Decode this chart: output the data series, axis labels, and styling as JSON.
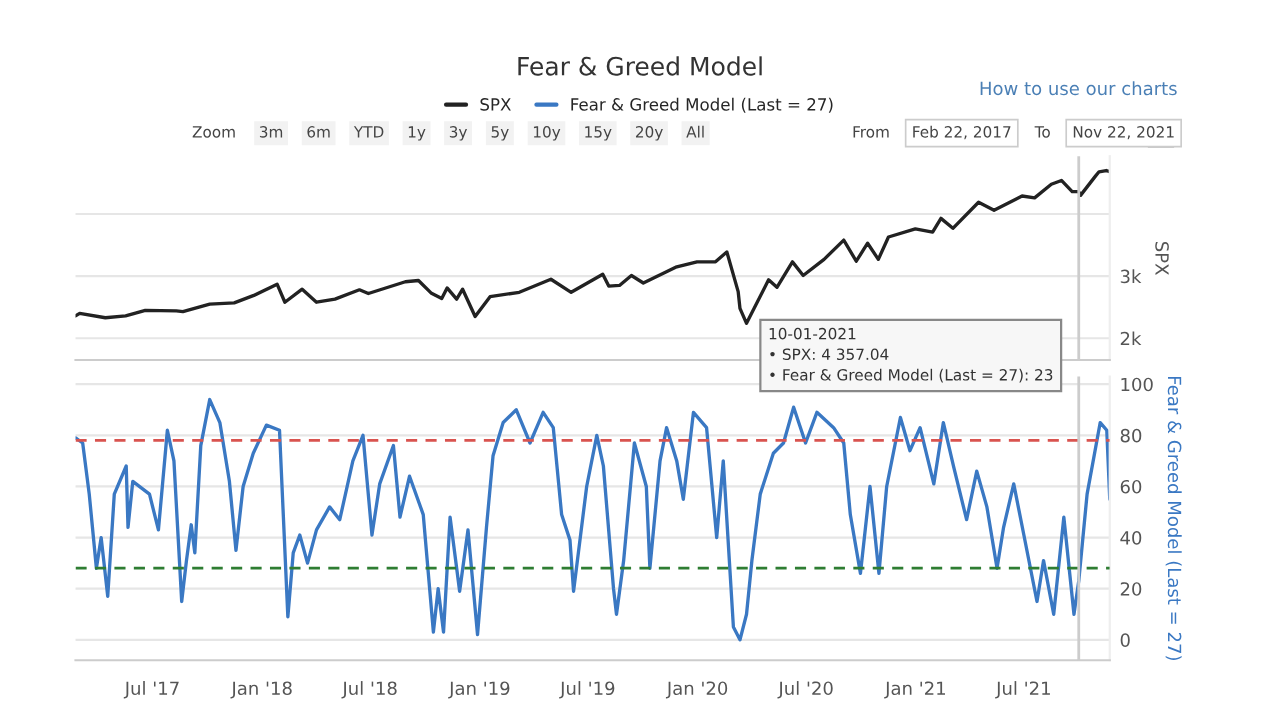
{
  "chart_data": [
    {
      "type": "line",
      "title": "Fear & Greed Model",
      "ylabel": "SPX",
      "legend": "top",
      "grid": "y",
      "tick_labels": "y",
      "xlim": [
        "2017-02-22",
        "2021-11-22"
      ],
      "ylim": [
        1650,
        4930
      ],
      "yticks": [
        {
          "value": 2000,
          "label": "2k"
        },
        {
          "value": 3000,
          "label": "3k"
        },
        {
          "value": 4000,
          "label": null
        }
      ],
      "ref_lines": [
        {
          "axis": "x",
          "value": "2021-10-01",
          "label": null,
          "color": "#cccccc"
        }
      ],
      "annotations": [
        "How to use our charts",
        "Zoom",
        "3m",
        "6m",
        "YTD",
        "1y",
        "3y",
        "5y",
        "10y",
        "15y",
        "20y",
        "All",
        "From",
        "Feb 22, 2017",
        "To",
        "Nov 22, 2021",
        "10-01-2021\n• SPX: 4 357.04\n• Fear & Greed Model (Last = 27): 23"
      ],
      "series": [
        {
          "name": "SPX",
          "color": "#222222",
          "x": [
            "2017-02-22",
            "2017-03-01",
            "2017-04-13",
            "2017-05-17",
            "2017-06-19",
            "2017-08-10",
            "2017-08-21",
            "2017-10-05",
            "2017-11-15",
            "2017-12-18",
            "2018-01-26",
            "2018-02-08",
            "2018-03-09",
            "2018-04-02",
            "2018-05-03",
            "2018-06-13",
            "2018-06-28",
            "2018-08-29",
            "2018-09-20",
            "2018-10-11",
            "2018-10-29",
            "2018-11-07",
            "2018-11-23",
            "2018-12-03",
            "2018-12-24",
            "2019-01-18",
            "2019-03-08",
            "2019-04-30",
            "2019-06-03",
            "2019-07-26",
            "2019-08-05",
            "2019-08-23",
            "2019-09-12",
            "2019-10-02",
            "2019-11-27",
            "2019-12-31",
            "2020-01-31",
            "2020-02-19",
            "2020-03-09",
            "2020-03-12",
            "2020-03-23",
            "2020-04-29",
            "2020-05-13",
            "2020-06-08",
            "2020-06-26",
            "2020-07-31",
            "2020-09-02",
            "2020-09-23",
            "2020-10-12",
            "2020-10-30",
            "2020-11-16",
            "2020-12-31",
            "2021-01-29",
            "2021-02-12",
            "2021-03-04",
            "2021-04-16",
            "2021-05-12",
            "2021-06-28",
            "2021-07-19",
            "2021-08-16",
            "2021-09-02",
            "2021-09-20",
            "2021-10-01",
            "2021-10-04",
            "2021-10-29",
            "2021-11-04",
            "2021-11-16",
            "2021-11-22"
          ],
          "values": [
            2360,
            2400,
            2330,
            2360,
            2450,
            2440,
            2430,
            2550,
            2570,
            2690,
            2870,
            2580,
            2790,
            2580,
            2630,
            2780,
            2720,
            2910,
            2930,
            2730,
            2640,
            2810,
            2630,
            2790,
            2350,
            2670,
            2740,
            2950,
            2740,
            3030,
            2840,
            2850,
            3010,
            2890,
            3150,
            3230,
            3230,
            3390,
            2750,
            2480,
            2240,
            2940,
            2820,
            3230,
            3010,
            3270,
            3580,
            3240,
            3530,
            3270,
            3630,
            3760,
            3710,
            3930,
            3770,
            4190,
            4060,
            4290,
            4260,
            4480,
            4540,
            4360,
            4360,
            4300,
            4610,
            4680,
            4700,
            4680
          ]
        }
      ]
    },
    {
      "type": "line",
      "ylabel": "Fear & Greed Model (Last = 27)",
      "legend": "top",
      "grid": "y",
      "xlim": [
        "2017-02-22",
        "2021-11-22"
      ],
      "ylim": [
        -8,
        103
      ],
      "yticks": [
        0,
        20,
        40,
        60,
        80,
        100
      ],
      "xticks": [
        {
          "value": "2017-07-01",
          "label": "Jul '17"
        },
        {
          "value": "2018-01-01",
          "label": "Jan '18"
        },
        {
          "value": "2018-07-01",
          "label": "Jul '18"
        },
        {
          "value": "2019-01-01",
          "label": "Jan '19"
        },
        {
          "value": "2019-07-01",
          "label": "Jul '19"
        },
        {
          "value": "2020-01-01",
          "label": "Jan '20"
        },
        {
          "value": "2020-07-01",
          "label": "Jul '20"
        },
        {
          "value": "2021-01-01",
          "label": "Jan '21"
        },
        {
          "value": "2021-07-01",
          "label": "Jul '21"
        }
      ],
      "ref_lines": [
        {
          "axis": "y",
          "value": 78,
          "label": null,
          "color": "#d9534f",
          "line_style": "dashed"
        },
        {
          "axis": "y",
          "value": 28,
          "label": null,
          "color": "#2e7d32",
          "line_style": "dashed"
        },
        {
          "axis": "x",
          "value": "2021-10-01",
          "label": null,
          "color": "#cccccc"
        }
      ],
      "series": [
        {
          "name": "Fear & Greed Model (Last = 27)",
          "color": "#3a78c3",
          "x": [
            "2017-02-22",
            "2017-03-06",
            "2017-03-17",
            "2017-03-29",
            "2017-04-06",
            "2017-04-17",
            "2017-04-28",
            "2017-05-18",
            "2017-05-21",
            "2017-05-29",
            "2017-06-26",
            "2017-07-11",
            "2017-07-26",
            "2017-08-06",
            "2017-08-19",
            "2017-08-27",
            "2017-09-04",
            "2017-09-10",
            "2017-09-20",
            "2017-10-05",
            "2017-10-22",
            "2017-11-07",
            "2017-11-18",
            "2017-11-30",
            "2017-12-17",
            "2018-01-08",
            "2018-01-30",
            "2018-02-13",
            "2018-02-22",
            "2018-03-05",
            "2018-03-18",
            "2018-04-02",
            "2018-04-24",
            "2018-05-11",
            "2018-06-02",
            "2018-06-19",
            "2018-07-04",
            "2018-07-17",
            "2018-08-09",
            "2018-08-20",
            "2018-09-05",
            "2018-09-28",
            "2018-10-15",
            "2018-10-23",
            "2018-11-01",
            "2018-11-12",
            "2018-11-28",
            "2018-12-12",
            "2018-12-28",
            "2019-01-12",
            "2019-01-23",
            "2019-02-09",
            "2019-03-03",
            "2019-03-26",
            "2019-04-17",
            "2019-05-04",
            "2019-05-18",
            "2019-06-01",
            "2019-06-07",
            "2019-06-29",
            "2019-07-16",
            "2019-07-27",
            "2019-08-13",
            "2019-08-18",
            "2019-08-30",
            "2019-09-17",
            "2019-10-07",
            "2019-10-13",
            "2019-10-30",
            "2019-11-10",
            "2019-11-27",
            "2019-12-08",
            "2019-12-25",
            "2020-01-16",
            "2020-02-02",
            "2020-02-13",
            "2020-03-01",
            "2020-03-12",
            "2020-03-23",
            "2020-04-01",
            "2020-04-15",
            "2020-05-07",
            "2020-05-24",
            "2020-06-10",
            "2020-06-30",
            "2020-07-19",
            "2020-08-16",
            "2020-09-02",
            "2020-09-13",
            "2020-09-30",
            "2020-10-16",
            "2020-10-31",
            "2020-11-13",
            "2020-12-06",
            "2020-12-22",
            "2021-01-08",
            "2021-01-31",
            "2021-02-16",
            "2021-03-05",
            "2021-03-27",
            "2021-04-13",
            "2021-04-30",
            "2021-05-17",
            "2021-05-28",
            "2021-06-14",
            "2021-07-01",
            "2021-07-23",
            "2021-08-03",
            "2021-08-20",
            "2021-09-06",
            "2021-09-23",
            "2021-10-01",
            "2021-10-15",
            "2021-11-06",
            "2021-11-17",
            "2021-11-22"
          ],
          "values": [
            79,
            77,
            57,
            28,
            40,
            17,
            57,
            68,
            44,
            62,
            57,
            43,
            82,
            70,
            15,
            31,
            45,
            34,
            76,
            94,
            85,
            62,
            35,
            60,
            73,
            84,
            82,
            9,
            34,
            41,
            30,
            43,
            52,
            47,
            70,
            80,
            41,
            61,
            76,
            48,
            64,
            49,
            3,
            20,
            3,
            48,
            19,
            43,
            2,
            44,
            72,
            85,
            90,
            77,
            89,
            83,
            49,
            39,
            19,
            60,
            80,
            68,
            20,
            10,
            31,
            77,
            60,
            28,
            70,
            83,
            70,
            55,
            89,
            83,
            40,
            70,
            5,
            0,
            10,
            31,
            57,
            73,
            77,
            91,
            77,
            89,
            83,
            77,
            49,
            26,
            60,
            26,
            60,
            87,
            74,
            83,
            61,
            85,
            68,
            47,
            66,
            52,
            28,
            44,
            61,
            41,
            15,
            31,
            10,
            48,
            10,
            23,
            57,
            85,
            82,
            55
          ]
        }
      ]
    }
  ]
}
